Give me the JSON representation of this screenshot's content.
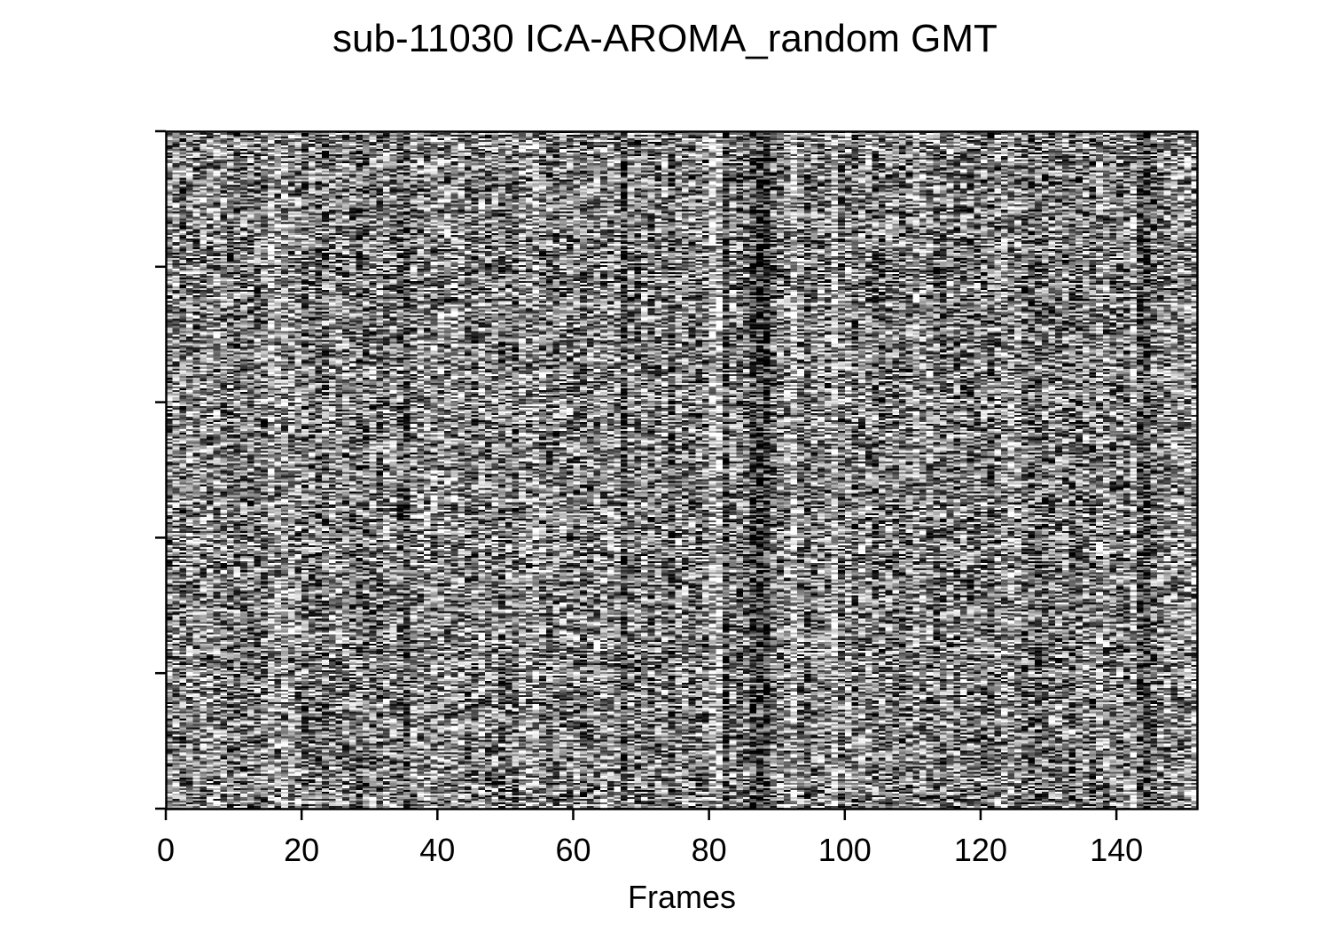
{
  "chart_data": {
    "type": "heatmap",
    "title": "sub-11030 ICA-AROMA_random GMT",
    "xlabel": "Frames",
    "ylabel": "",
    "xlim": [
      0,
      152
    ],
    "x_ticks": [
      0,
      20,
      40,
      60,
      80,
      100,
      120,
      140
    ],
    "x_tick_labels": [
      "0",
      "20",
      "40",
      "60",
      "80",
      "100",
      "120",
      "140"
    ],
    "y_tick_count": 6,
    "y_tick_labels": [],
    "colormap": "gray",
    "frames": 152,
    "grid": false,
    "legend": "none",
    "dark_frames": [
      35,
      67,
      74,
      82,
      86,
      87,
      88,
      143,
      144
    ],
    "bright_frames": [
      15,
      52,
      80,
      81,
      92,
      98,
      142,
      150
    ]
  }
}
